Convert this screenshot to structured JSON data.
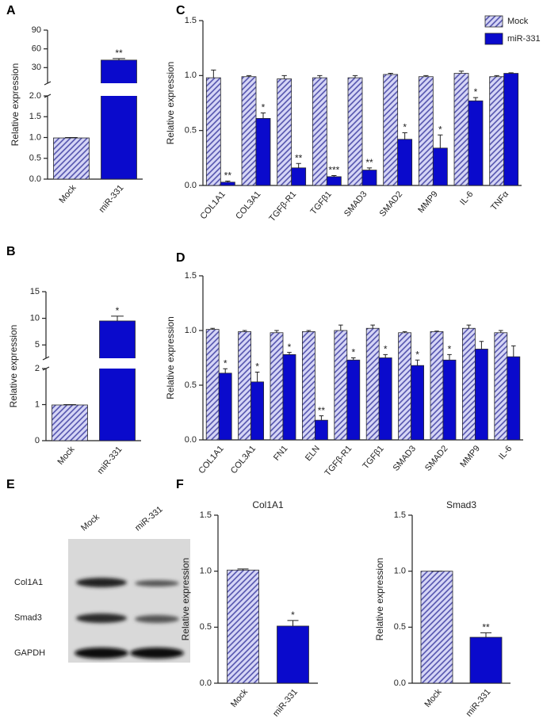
{
  "chart_data": [
    {
      "type": "bar",
      "panel": "A",
      "ylabel": "Relative expression",
      "categories": [
        "Mock",
        "miR-331"
      ],
      "values": [
        0.99,
        42
      ],
      "errors": [
        0.01,
        2.5
      ],
      "stars": [
        null,
        "**"
      ],
      "colors": [
        "#d6d6f6",
        "#0a0acc"
      ],
      "hatch": [
        "#4a4aa8",
        null
      ],
      "ylim": [
        0,
        90
      ],
      "ybreak": [
        2,
        5
      ],
      "yticks": [
        {
          "value": 0,
          "label": "0.0"
        },
        0.5,
        {
          "value": 1,
          "label": "1.0"
        },
        1.5,
        {
          "value": 2,
          "label": "2.0"
        },
        30,
        60,
        90
      ]
    },
    {
      "type": "bar",
      "panel": "B",
      "ylabel": "Relative expression",
      "categories": [
        "Mock",
        "miR-331"
      ],
      "values": [
        0.99,
        9.5
      ],
      "errors": [
        0.01,
        0.9
      ],
      "stars": [
        null,
        "*"
      ],
      "colors": [
        "#d6d6f6",
        "#0a0acc"
      ],
      "hatch": [
        "#4a4aa8",
        null
      ],
      "ylim": [
        0,
        15
      ],
      "ybreak": [
        2,
        2.5
      ],
      "yticks": [
        0,
        1,
        2,
        5,
        10,
        15
      ]
    },
    {
      "type": "grouped_bar",
      "panel": "C",
      "ylabel": "Relative expression",
      "legend": "upper right",
      "categories": [
        "COL1A1",
        "COL3A1",
        "TGFβ-R1",
        "TGFβ1",
        "SMAD3",
        "SMAD2",
        "MMP9",
        "IL-6",
        "TNFα"
      ],
      "series": [
        {
          "name": "Mock",
          "color": "#d6d6f6",
          "hatch": "#4a4aa8",
          "values": [
            0.98,
            0.99,
            0.97,
            0.98,
            0.98,
            1.01,
            0.99,
            1.02,
            0.99
          ],
          "errors": [
            0.07,
            0.01,
            0.03,
            0.02,
            0.02,
            0.01,
            0.01,
            0.02,
            0.01
          ]
        },
        {
          "name": "miR-331",
          "color": "#0a0acc",
          "values": [
            0.03,
            0.61,
            0.16,
            0.08,
            0.14,
            0.42,
            0.34,
            0.77,
            1.02
          ],
          "errors": [
            0.01,
            0.05,
            0.04,
            0.01,
            0.02,
            0.06,
            0.12,
            0.03,
            0.005
          ],
          "stars": [
            "**",
            "*",
            "**",
            "***",
            "**",
            "*",
            "*",
            "*",
            null
          ]
        }
      ],
      "ylim": [
        0,
        1.5
      ],
      "yticks": [
        {
          "value": 0,
          "label": "0.0"
        },
        0.5,
        {
          "value": 1,
          "label": "1.0"
        },
        1.5
      ]
    },
    {
      "type": "grouped_bar",
      "panel": "D",
      "ylabel": "Relative expression",
      "categories": [
        "COL1A1",
        "COL3A1",
        "FN1",
        "ELN",
        "TGFβ-R1",
        "TGFβ1",
        "SMAD3",
        "SMAD2",
        "MMP9",
        "IL-6"
      ],
      "series": [
        {
          "color": "#d6d6f6",
          "hatch": "#4a4aa8",
          "values": [
            1.01,
            0.99,
            0.98,
            0.99,
            1.0,
            1.02,
            0.98,
            0.99,
            1.02,
            0.98
          ],
          "errors": [
            0.01,
            0.01,
            0.02,
            0.01,
            0.05,
            0.03,
            0.01,
            0.005,
            0.03,
            0.02
          ]
        },
        {
          "color": "#0a0acc",
          "values": [
            0.61,
            0.53,
            0.78,
            0.18,
            0.73,
            0.75,
            0.68,
            0.73,
            0.83,
            0.76
          ],
          "errors": [
            0.04,
            0.09,
            0.02,
            0.04,
            0.02,
            0.03,
            0.05,
            0.05,
            0.07,
            0.1
          ],
          "stars": [
            "*",
            "*",
            "*",
            "**",
            "*",
            "*",
            "*",
            "*",
            null,
            null
          ]
        }
      ],
      "ylim": [
        0,
        1.5
      ],
      "yticks": [
        {
          "value": 0,
          "label": "0.0"
        },
        0.5,
        {
          "value": 1,
          "label": "1.0"
        },
        1.5
      ]
    },
    {
      "type": "blot",
      "panel": "E",
      "lanes": [
        "Mock",
        "miR-331"
      ],
      "bands": [
        "Col1A1",
        "Smad3",
        "GAPDH"
      ]
    },
    {
      "type": "bar",
      "panel": "F",
      "title": "Col1A1",
      "ylabel": "Relative expression",
      "categories": [
        "Mock",
        "miR-331"
      ],
      "values": [
        1.01,
        0.51
      ],
      "errors": [
        0.01,
        0.05
      ],
      "stars": [
        null,
        "*"
      ],
      "colors": [
        "#d6d6f6",
        "#0a0acc"
      ],
      "hatch": [
        "#4a4aa8",
        null
      ],
      "ylim": [
        0,
        1.5
      ],
      "yticks": [
        {
          "value": 0,
          "label": "0.0"
        },
        0.5,
        {
          "value": 1,
          "label": "1.0"
        },
        1.5
      ]
    },
    {
      "type": "bar",
      "title": "Smad3",
      "ylabel": "Relative expression",
      "categories": [
        "Mock",
        "miR-331"
      ],
      "values": [
        1.0,
        0.41
      ],
      "errors": [
        0,
        0.04
      ],
      "stars": [
        null,
        "**"
      ],
      "colors": [
        "#d6d6f6",
        "#0a0acc"
      ],
      "hatch": [
        "#4a4aa8",
        null
      ],
      "ylim": [
        0,
        1.5
      ],
      "yticks": [
        {
          "value": 0,
          "label": "0.0"
        },
        0.5,
        {
          "value": 1,
          "label": "1.0"
        },
        1.5
      ]
    }
  ]
}
